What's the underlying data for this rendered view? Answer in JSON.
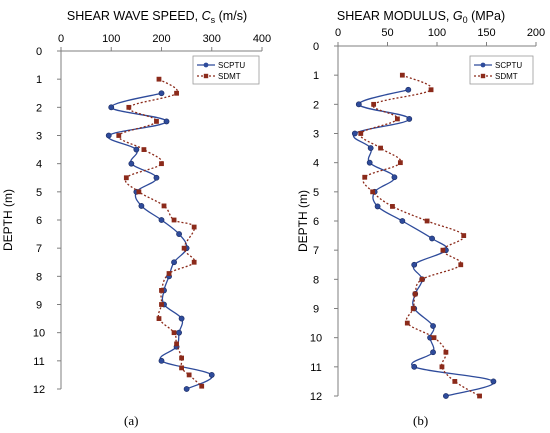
{
  "figure": {
    "caption_a": "(a)",
    "caption_b": "(b)"
  },
  "chart_data": [
    {
      "type": "line",
      "title": "SHEAR WAVE SPEED, Cs (m/s)",
      "title_main": "SHEAR WAVE SPEED, ",
      "title_symbol": "C",
      "title_sub": "s",
      "title_unit": " (m/s)",
      "xlabel": "",
      "ylabel": "DEPTH (m)",
      "xlim": [
        0,
        400
      ],
      "ylim": [
        0,
        12
      ],
      "x_ticks": [
        "0",
        "100",
        "200",
        "300",
        "400"
      ],
      "y_ticks": [
        "0",
        "1",
        "2",
        "3",
        "4",
        "5",
        "6",
        "7",
        "8",
        "9",
        "10",
        "11",
        "12"
      ],
      "y_inverted": true,
      "x_axis_position": "top",
      "grid": false,
      "legend_position": "top-right",
      "series": [
        {
          "name": "SCPTU",
          "color": "#2e4b9b",
          "marker": "circle",
          "line": "solid",
          "points": [
            [
              200,
              1.5
            ],
            [
              100,
              2.0
            ],
            [
              210,
              2.5
            ],
            [
              95,
              3.0
            ],
            [
              150,
              3.5
            ],
            [
              140,
              4.0
            ],
            [
              190,
              4.5
            ],
            [
              150,
              5.0
            ],
            [
              160,
              5.5
            ],
            [
              200,
              6.0
            ],
            [
              235,
              6.5
            ],
            [
              250,
              7.0
            ],
            [
              225,
              7.5
            ],
            [
              215,
              8.0
            ],
            [
              205,
              8.5
            ],
            [
              205,
              9.0
            ],
            [
              240,
              9.5
            ],
            [
              235,
              10.0
            ],
            [
              230,
              10.5
            ],
            [
              200,
              11.0
            ],
            [
              300,
              11.5
            ],
            [
              250,
              12.0
            ]
          ]
        },
        {
          "name": "SDMT",
          "color": "#8b2a1a",
          "marker": "square",
          "line": "dotted",
          "points": [
            [
              195,
              1.0
            ],
            [
              230,
              1.5
            ],
            [
              135,
              2.0
            ],
            [
              190,
              2.5
            ],
            [
              115,
              3.0
            ],
            [
              165,
              3.5
            ],
            [
              200,
              4.0
            ],
            [
              130,
              4.5
            ],
            [
              155,
              5.0
            ],
            [
              205,
              5.5
            ],
            [
              225,
              6.0
            ],
            [
              265,
              6.25
            ],
            [
              245,
              7.0
            ],
            [
              265,
              7.5
            ],
            [
              215,
              7.9
            ],
            [
              200,
              8.5
            ],
            [
              200,
              9.0
            ],
            [
              195,
              9.5
            ],
            [
              225,
              10.0
            ],
            [
              230,
              10.4
            ],
            [
              240,
              10.9
            ],
            [
              240,
              11.25
            ],
            [
              255,
              11.5
            ],
            [
              280,
              11.9
            ]
          ]
        }
      ]
    },
    {
      "type": "line",
      "title": "SHEAR MODULUS, G0 (MPa)",
      "title_main": "SHEAR MODULUS, ",
      "title_symbol": "G",
      "title_sub": "0",
      "title_unit": " (MPa)",
      "xlabel": "",
      "ylabel": "DEPTH (m)",
      "xlim": [
        0,
        200
      ],
      "ylim": [
        0,
        12
      ],
      "x_ticks": [
        "0",
        "50",
        "100",
        "150",
        "200"
      ],
      "y_ticks": [
        "0",
        "1",
        "2",
        "3",
        "4",
        "5",
        "6",
        "7",
        "8",
        "9",
        "10",
        "11",
        "12"
      ],
      "y_inverted": true,
      "x_axis_position": "top",
      "grid": false,
      "legend_position": "top-right",
      "series": [
        {
          "name": "SCPTU",
          "color": "#2e4b9b",
          "marker": "circle",
          "line": "solid",
          "points": [
            [
              71,
              1.5
            ],
            [
              21,
              2.0
            ],
            [
              72,
              2.5
            ],
            [
              17,
              3.0
            ],
            [
              33,
              3.5
            ],
            [
              32,
              4.0
            ],
            [
              57,
              4.5
            ],
            [
              37,
              5.0
            ],
            [
              40,
              5.5
            ],
            [
              65,
              6.0
            ],
            [
              95,
              6.6
            ],
            [
              109,
              7.0
            ],
            [
              77,
              7.5
            ],
            [
              85,
              8.0
            ],
            [
              78,
              8.5
            ],
            [
              77,
              9.0
            ],
            [
              96,
              9.6
            ],
            [
              93,
              10.0
            ],
            [
              96,
              10.5
            ],
            [
              77,
              11.0
            ],
            [
              157,
              11.5
            ],
            [
              109,
              12.0
            ]
          ]
        },
        {
          "name": "SDMT",
          "color": "#8b2a1a",
          "marker": "square",
          "line": "dotted",
          "points": [
            [
              65,
              1.0
            ],
            [
              94,
              1.5
            ],
            [
              36,
              2.0
            ],
            [
              60,
              2.5
            ],
            [
              23,
              3.0
            ],
            [
              43,
              3.5
            ],
            [
              63,
              4.0
            ],
            [
              27,
              4.5
            ],
            [
              35,
              5.0
            ],
            [
              55,
              5.5
            ],
            [
              90,
              6.0
            ],
            [
              127,
              6.5
            ],
            [
              106,
              7.0
            ],
            [
              124,
              7.5
            ],
            [
              85,
              8.0
            ],
            [
              78,
              8.5
            ],
            [
              76,
              9.0
            ],
            [
              70,
              9.5
            ],
            [
              97,
              10.0
            ],
            [
              109,
              10.5
            ],
            [
              105,
              11.0
            ],
            [
              118,
              11.5
            ],
            [
              143,
              12.0
            ]
          ]
        }
      ]
    }
  ]
}
